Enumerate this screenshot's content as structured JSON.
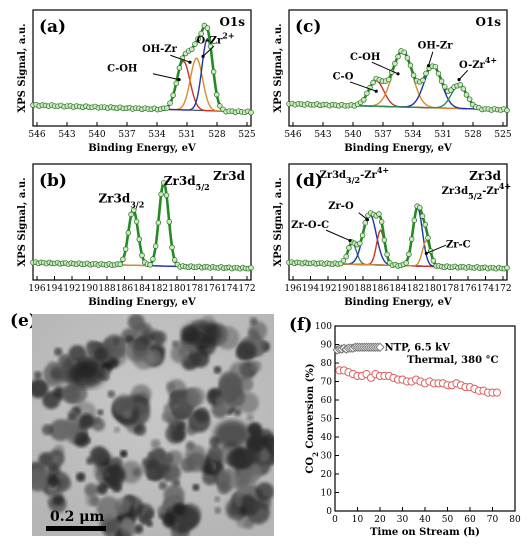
{
  "panels": [
    {
      "id": "a",
      "label": "(a)",
      "element": "O1s",
      "xlabel": "Binding Energy, eV",
      "ylabel": "XPS Signal, a.u.",
      "xticks": [
        "546",
        "543",
        "540",
        "537",
        "534",
        "531",
        "528",
        "525"
      ],
      "peaks": [
        {
          "label": "C-OH",
          "sub": "",
          "sup": ""
        },
        {
          "label": "OH-Zr",
          "sub": "",
          "sup": ""
        },
        {
          "label": "O-Zr",
          "sub": "",
          "sup": "2+"
        }
      ]
    },
    {
      "id": "c",
      "label": "(c)",
      "element": "O1s",
      "xlabel": "Binding Energy, eV",
      "ylabel": "XPS Signal, a.u.",
      "xticks": [
        "546",
        "543",
        "540",
        "537",
        "534",
        "531",
        "528",
        "525"
      ],
      "peaks": [
        {
          "label": "C-O",
          "sub": "",
          "sup": ""
        },
        {
          "label": "C-OH",
          "sub": "",
          "sup": ""
        },
        {
          "label": "OH-Zr",
          "sub": "",
          "sup": ""
        },
        {
          "label": "O-Zr",
          "sub": "",
          "sup": "4+"
        }
      ]
    },
    {
      "id": "b",
      "label": "(b)",
      "element": "Zr3d",
      "xlabel": "Binding Energy, eV",
      "ylabel": "XPS Signal, a.u.",
      "xticks": [
        "196",
        "194",
        "192",
        "190",
        "188",
        "186",
        "184",
        "182",
        "180",
        "178",
        "176",
        "174",
        "172"
      ],
      "peaks": [
        {
          "label": "Zr3d",
          "sub": "3/2",
          "sup": ""
        },
        {
          "label": "Zr3d",
          "sub": "5/2",
          "sup": ""
        }
      ]
    },
    {
      "id": "d",
      "label": "(d)",
      "element": "Zr3d",
      "xlabel": "Binding Energy, eV",
      "ylabel": "XPS Signal, a.u.",
      "xticks": [
        "196",
        "194",
        "192",
        "190",
        "188",
        "186",
        "184",
        "182",
        "180",
        "178",
        "176",
        "174",
        "172"
      ],
      "peaks": [
        {
          "label": "Zr3d",
          "sub": "3/2",
          "sup": "",
          "suffix": "-Zr",
          "suffix_sup": "4+"
        },
        {
          "label": "Zr-O",
          "sub": "",
          "sup": ""
        },
        {
          "label": "Zr-O-C",
          "sub": "",
          "sup": ""
        },
        {
          "label": "Zr3d",
          "sub": "5/2",
          "sup": "",
          "suffix": "-Zr",
          "suffix_sup": "4+"
        },
        {
          "label": "Zr-C",
          "sub": "",
          "sup": ""
        }
      ]
    }
  ],
  "tem": {
    "label": "(e)",
    "scale_text": "0.2  μm"
  },
  "chart_data": [
    {
      "type": "scatter",
      "panel": "(f)",
      "xlabel": "Time on Stream (h)",
      "ylabel": "CO2 Conversion (%)",
      "ylabel_parts": {
        "pre": "CO",
        "sub": "2",
        "post": " Conversion (%)"
      },
      "xlim": [
        0,
        80
      ],
      "ylim": [
        0,
        100
      ],
      "xticks": [
        0,
        10,
        20,
        30,
        40,
        50,
        60,
        70,
        80
      ],
      "yticks": [
        0,
        10,
        20,
        30,
        40,
        50,
        60,
        70,
        80,
        90,
        100
      ],
      "series": [
        {
          "name": "NTP, 6.5 kV",
          "marker": "diamond",
          "color": "#777777",
          "x": [
            1,
            2,
            3,
            4,
            5,
            6,
            7,
            8,
            9,
            10,
            11,
            12,
            13,
            14,
            15,
            16,
            17,
            18,
            19,
            20
          ],
          "y": [
            87,
            87.5,
            87.5,
            88,
            87.5,
            88,
            88,
            88,
            88.5,
            88.5,
            88.5,
            88.5,
            88.5,
            88.5,
            88.5,
            88.5,
            88.5,
            88.5,
            88.5,
            88.5
          ]
        },
        {
          "name": "Thermal, 380 °C",
          "marker": "circle",
          "color": "#e06060",
          "x": [
            2,
            4,
            6,
            8,
            10,
            12,
            14,
            16,
            18,
            20,
            22,
            24,
            26,
            28,
            30,
            32,
            34,
            36,
            38,
            40,
            42,
            44,
            46,
            48,
            50,
            52,
            54,
            56,
            58,
            60,
            62,
            64,
            66,
            68,
            70,
            72
          ],
          "y": [
            76,
            76,
            75,
            74,
            73,
            73,
            74,
            72,
            74,
            73,
            73,
            73,
            72,
            71,
            71,
            70,
            70,
            71,
            70,
            69,
            70,
            69,
            69,
            69,
            68,
            68,
            69,
            68,
            67,
            67,
            66,
            65,
            65,
            64,
            64,
            64
          ]
        }
      ]
    }
  ],
  "colors": {
    "fit_envelope": "#228B22",
    "data_marker_fill": "#cfe8c2",
    "peak_red": "#cc3322",
    "peak_orange": "#d98a2b",
    "peak_blue": "#2233aa",
    "peak_green": "#2e8b57",
    "baseline": "#445566"
  }
}
